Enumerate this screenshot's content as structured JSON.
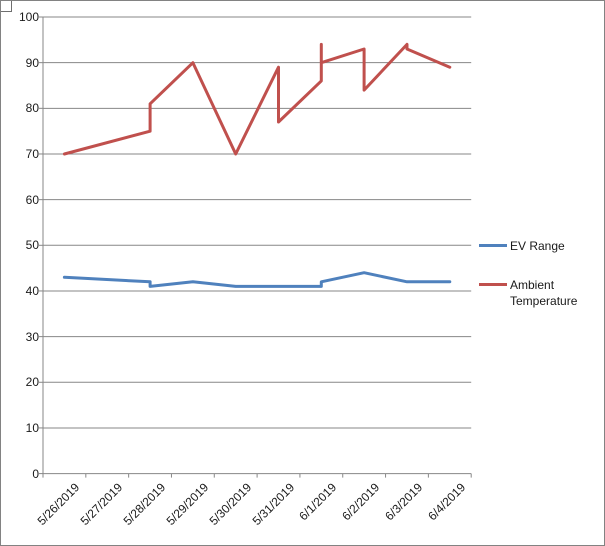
{
  "chart_data": {
    "type": "line",
    "title": "",
    "x_labels": [
      "5/26/2019",
      "5/27/2019",
      "5/28/2019",
      "5/29/2019",
      "5/30/2019",
      "5/31/2019",
      "6/1/2019",
      "6/2/2019",
      "6/3/2019",
      "6/4/2019"
    ],
    "y_ticks": [
      0,
      10,
      20,
      30,
      40,
      50,
      60,
      70,
      80,
      90,
      100
    ],
    "ylim": [
      0,
      100
    ],
    "grid": "horizontal",
    "legend_position": "right",
    "series": [
      {
        "key": "ev_range",
        "name": "EV Range",
        "color": "#4F81BD"
      },
      {
        "key": "ambient_temperature",
        "name": "Ambient Temperature",
        "color": "#C0504D"
      }
    ],
    "readings": [
      {
        "date": "5/26/2019",
        "ev_range": 43,
        "ambient_temperature": 70
      },
      {
        "date": "5/28/2019",
        "ev_range": 42,
        "ambient_temperature": 75
      },
      {
        "date": "5/28/2019",
        "ev_range": 41,
        "ambient_temperature": 81
      },
      {
        "date": "5/29/2019",
        "ev_range": 42,
        "ambient_temperature": 90
      },
      {
        "date": "5/30/2019",
        "ev_range": 41,
        "ambient_temperature": 70
      },
      {
        "date": "5/31/2019",
        "ev_range": 41,
        "ambient_temperature": 89
      },
      {
        "date": "5/31/2019",
        "ev_range": 41,
        "ambient_temperature": 77
      },
      {
        "date": "6/1/2019",
        "ev_range": 41,
        "ambient_temperature": 86
      },
      {
        "date": "6/1/2019",
        "ev_range": 42,
        "ambient_temperature": 94
      },
      {
        "date": "6/1/2019",
        "ev_range": 42,
        "ambient_temperature": 90
      },
      {
        "date": "6/2/2019",
        "ev_range": 44,
        "ambient_temperature": 93
      },
      {
        "date": "6/2/2019",
        "ev_range": 44,
        "ambient_temperature": 84
      },
      {
        "date": "6/3/2019",
        "ev_range": 42,
        "ambient_temperature": 94
      },
      {
        "date": "6/3/2019",
        "ev_range": 42,
        "ambient_temperature": 93
      },
      {
        "date": "6/4/2019",
        "ev_range": 42,
        "ambient_temperature": 89
      }
    ],
    "colors": {
      "gridline": "#878787",
      "axis": "#878787",
      "text": "#1a1a1a",
      "background": "#ffffff",
      "border": "#828282"
    }
  }
}
